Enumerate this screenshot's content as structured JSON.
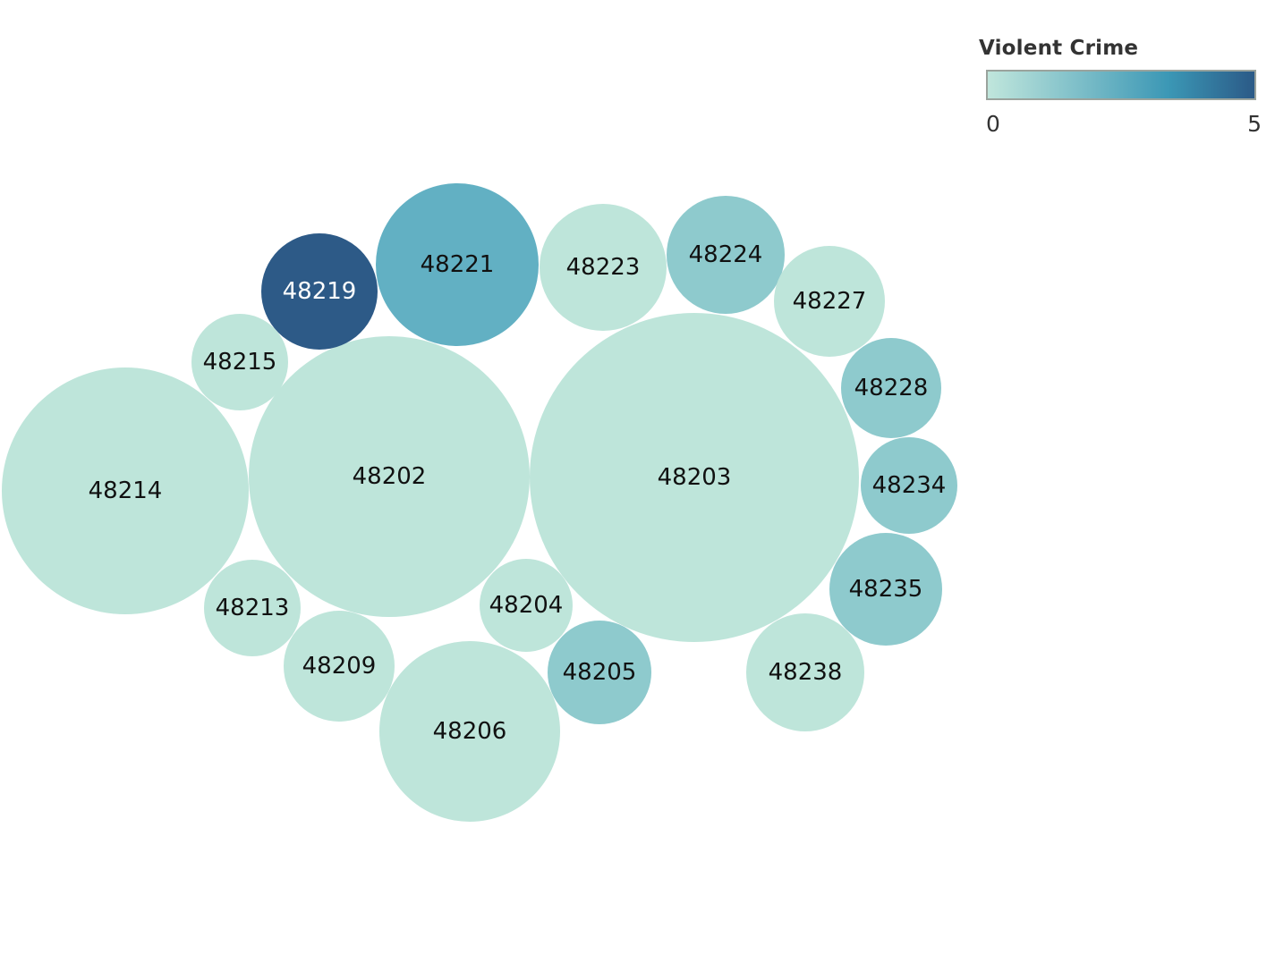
{
  "chart_data": {
    "type": "bubble",
    "legend": {
      "title": "Violent Crime",
      "min_label": "0",
      "max_label": "5",
      "min": 0,
      "max": 5,
      "placement": "top-right",
      "color_low": "#c0e6dc",
      "color_mid": "#3b97b5",
      "color_high": "#2b5a87"
    },
    "bubbles": [
      {
        "label": "48203",
        "violent_crime": 0
      },
      {
        "label": "48202",
        "violent_crime": 0
      },
      {
        "label": "48214",
        "violent_crime": 0
      },
      {
        "label": "48206",
        "violent_crime": 0
      },
      {
        "label": "48221",
        "violent_crime": 2
      },
      {
        "label": "48223",
        "violent_crime": 0
      },
      {
        "label": "48224",
        "violent_crime": 1
      },
      {
        "label": "48238",
        "violent_crime": 0
      },
      {
        "label": "48219",
        "violent_crime": 5
      },
      {
        "label": "48235",
        "violent_crime": 1
      },
      {
        "label": "48227",
        "violent_crime": 0
      },
      {
        "label": "48209",
        "violent_crime": 0
      },
      {
        "label": "48205",
        "violent_crime": 1
      },
      {
        "label": "48228",
        "violent_crime": 1
      },
      {
        "label": "48215",
        "violent_crime": 0
      },
      {
        "label": "48234",
        "violent_crime": 1
      },
      {
        "label": "48213",
        "violent_crime": 0
      },
      {
        "label": "48204",
        "violent_crime": 0
      }
    ]
  }
}
